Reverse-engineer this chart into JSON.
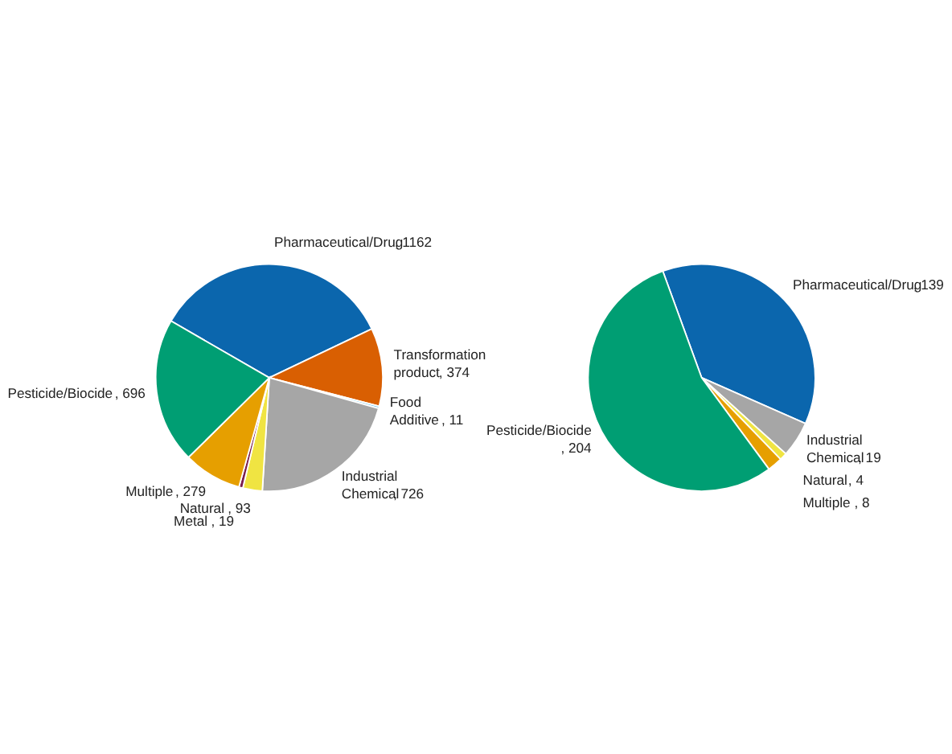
{
  "chart_data": [
    {
      "type": "pie",
      "categories": [
        "Pharmaceutical/Drug",
        "Transformation product",
        "Food Additive",
        "Industrial Chemical",
        "Natural",
        "Metal",
        "Multiple",
        "Pesticide/Biocide"
      ],
      "values": [
        1162,
        374,
        11,
        726,
        93,
        19,
        279,
        696
      ],
      "value_labels": [
        ", 1162",
        ", 374",
        ", 11",
        ", 726",
        ", 93",
        ", 19",
        ", 279",
        ", 696"
      ],
      "colors": [
        "#0b66ad",
        "#d95f02",
        "#7fc8ea",
        "#a6a6a6",
        "#f0e442",
        "#7b1e4e",
        "#e69f00",
        "#009e73"
      ]
    },
    {
      "type": "pie",
      "categories": [
        "Pharmaceutical/Drug",
        "Industrial Chemical",
        "Natural",
        "Multiple",
        "Pesticide/Biocide"
      ],
      "values": [
        139,
        19,
        4,
        8,
        204
      ],
      "value_labels": [
        ", 139",
        ", 19",
        ", 4",
        ", 8",
        ", 204"
      ],
      "colors": [
        "#0b66ad",
        "#a6a6a6",
        "#f0e442",
        "#e69f00",
        "#009e73"
      ]
    }
  ]
}
